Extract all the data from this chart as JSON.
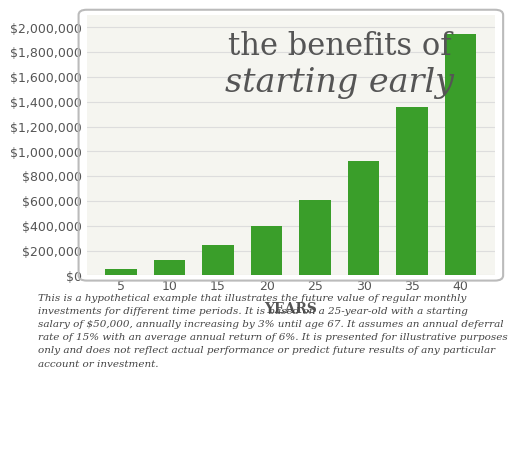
{
  "categories": [
    5,
    10,
    15,
    20,
    25,
    30,
    35,
    40
  ],
  "values": [
    50000,
    120000,
    245000,
    395000,
    610000,
    920000,
    1355000,
    1950000
  ],
  "bar_color": "#3a9e2a",
  "background_color": "#ffffff",
  "chart_bg_color": "#f5f5f0",
  "title_line1": "the benefits of",
  "title_line2": "starting early",
  "xlabel": "YEARS",
  "ylim": [
    0,
    2100000
  ],
  "yticks": [
    0,
    200000,
    400000,
    600000,
    800000,
    1000000,
    1200000,
    1400000,
    1600000,
    1800000,
    2000000
  ],
  "footnote": "This is a hypothetical example that illustrates the future value of regular monthly\ninvestments for different time periods. It is based on a 25-year-old with a starting\nsalary of $50,000, annually increasing by 3% until age 67. It assumes an annual deferral\nrate of 15% with an average annual return of 6%. It is presented for illustrative purposes\nonly and does not reflect actual performance or predict future results of any particular\naccount or investment.",
  "title_fontsize": 22,
  "title_italic_fontsize": 24,
  "axis_label_fontsize": 9,
  "tick_fontsize": 9,
  "footnote_fontsize": 7.5,
  "title_color": "#555555",
  "tick_color": "#555555",
  "grid_color": "#dddddd"
}
